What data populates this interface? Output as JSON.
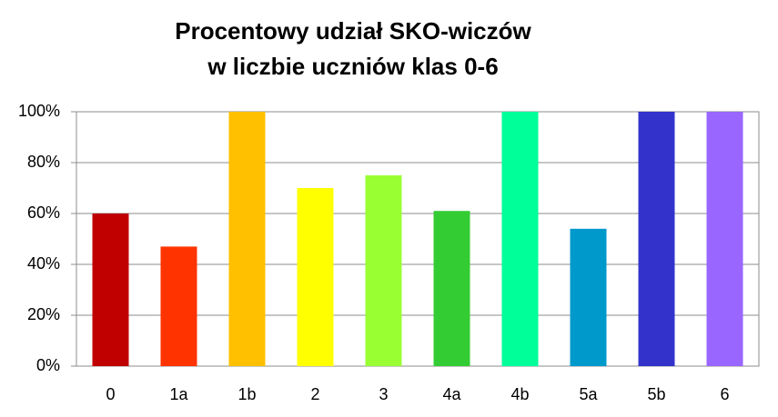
{
  "chart_data": {
    "type": "bar",
    "title": [
      "Procentowy udział SKO-wiczów",
      "w liczbie uczniów klas 0-6"
    ],
    "categories": [
      "0",
      "1a",
      "1b",
      "2",
      "3",
      "4a",
      "4b",
      "5a",
      "5b",
      "6"
    ],
    "values": [
      60,
      47,
      100,
      70,
      75,
      61,
      100,
      54,
      100,
      100
    ],
    "colors": [
      "#c00000",
      "#ff3300",
      "#ffc000",
      "#ffff00",
      "#99ff33",
      "#33cc33",
      "#00ff99",
      "#0099cc",
      "#3333cc",
      "#9966ff"
    ],
    "ylim": [
      0,
      100
    ],
    "yticks": [
      {
        "value": 0,
        "label": "0%"
      },
      {
        "value": 20,
        "label": "20%"
      },
      {
        "value": 40,
        "label": "40%"
      },
      {
        "value": 60,
        "label": "60%"
      },
      {
        "value": 80,
        "label": "80%"
      },
      {
        "value": 100,
        "label": "100%"
      }
    ],
    "grid": true
  }
}
